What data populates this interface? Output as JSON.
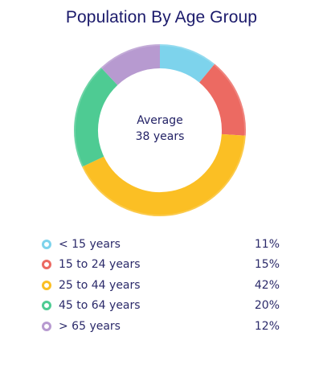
{
  "chart_data": {
    "type": "pie",
    "title": "Population By Age Group",
    "center_label": {
      "line1": "Average",
      "line2": "38 years"
    },
    "categories": [
      "< 15 years",
      "15 to 24 years",
      "25 to 44 years",
      "45 to 64 years",
      "> 65 years"
    ],
    "values": [
      11,
      15,
      42,
      20,
      12
    ],
    "value_labels": [
      "11%",
      "15%",
      "42%",
      "20%",
      "12%"
    ],
    "colors": [
      "#7dd3ec",
      "#ec6a62",
      "#fbbf24",
      "#4ecb93",
      "#b79ad0"
    ],
    "legend_position": "bottom"
  }
}
